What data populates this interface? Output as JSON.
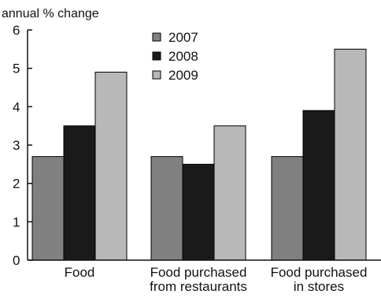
{
  "chart_data": {
    "type": "bar",
    "ylabel": "annual % change",
    "xlabel": "",
    "categories": [
      [
        "Food"
      ],
      [
        "Food purchased",
        "from restaurants"
      ],
      [
        "Food purchased",
        "in stores"
      ]
    ],
    "series": [
      {
        "name": "2007",
        "color": "#808080",
        "values": [
          2.7,
          2.7,
          2.7
        ]
      },
      {
        "name": "2008",
        "color": "#1a1a1a",
        "values": [
          3.5,
          2.5,
          3.9
        ]
      },
      {
        "name": "2009",
        "color": "#b8b8b8",
        "values": [
          4.9,
          3.5,
          5.5
        ]
      }
    ],
    "ylim": [
      0,
      6
    ],
    "yticks": [
      0,
      1,
      2,
      3,
      4,
      5,
      6
    ],
    "legend": "top-center",
    "grid": false
  }
}
